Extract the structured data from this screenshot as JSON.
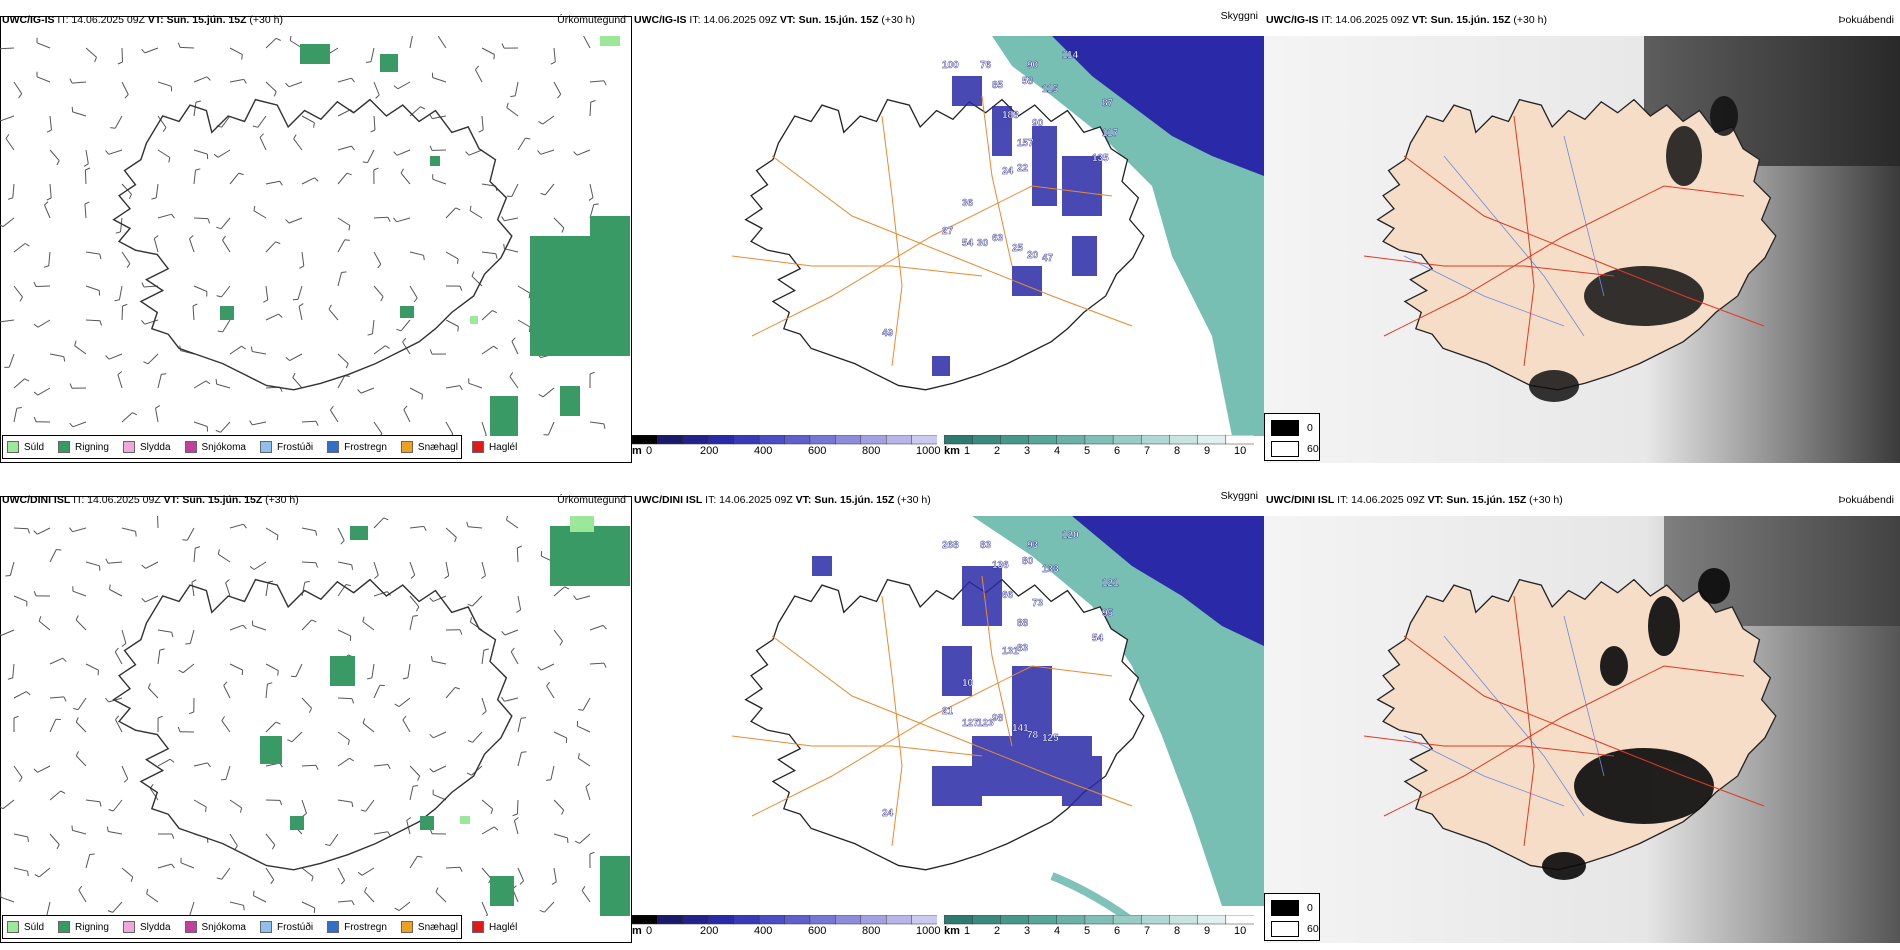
{
  "colors": {
    "drizzle": "#9be89b",
    "rain": "#3a9a66",
    "sleet": "#f0a8d8",
    "snow": "#c040a0",
    "freezing_drizzle": "#8ec0f0",
    "freezing_rain": "#3070c8",
    "snow_pellets": "#f0a020",
    "hail": "#e01818",
    "cloud_navy": "#2a2aa8",
    "visibility_teal": "#4aa89a",
    "land_tint": "#f5ddc8",
    "roads_orange": "#e88a30",
    "roads_red": "#e03a20",
    "rivers": "#6a8ae0"
  },
  "rows": [
    {
      "model_label": "UWC/IG-IS",
      "precip": {
        "header_rest": " IT: 14.06.2025 09Z ",
        "vt_label": "VT: Sun. 15.jún. 15Z",
        "lead": " (+30 h)",
        "field_title": "Úrkomutegund"
      },
      "ceiling": {
        "header_rest": " IT: 14.06.2025 09Z ",
        "vt_label": "VT: Sun. 15.jún. 15Z",
        "lead": " (+30 h)",
        "field_title": "Skyggni",
        "labels": [
          "100",
          "76",
          "90",
          "114",
          "85",
          "58",
          "115",
          "87",
          "117",
          "135",
          "188",
          "90",
          "157",
          "24",
          "22",
          "36",
          "27",
          "54",
          "30",
          "63",
          "25",
          "20",
          "47",
          "49"
        ]
      },
      "fog": {
        "header_rest": " IT: 14.06.2025 09Z ",
        "vt_label": "VT: Sun. 15.jún. 15Z",
        "lead": " (+30 h)",
        "field_title": "Þokuábendi"
      }
    },
    {
      "model_label": "UWC/DINI ISL",
      "precip": {
        "header_rest": " IT: 14.06.2025 09Z ",
        "vt_label": "VT: Sun. 15.jún. 15Z",
        "lead": " (+30 h)",
        "field_title": "Úrkomutegund"
      },
      "ceiling": {
        "header_rest": " IT: 14.06.2025 09Z ",
        "vt_label": "VT: Sun. 15.jún. 15Z",
        "lead": " (+30 h)",
        "field_title": "Skyggni",
        "labels": [
          "268",
          "83",
          "93",
          "120",
          "136",
          "80",
          "133",
          "121",
          "95",
          "54",
          "66",
          "73",
          "88",
          "131",
          "83",
          "10",
          "21",
          "127",
          "123",
          "98",
          "141",
          "78",
          "125",
          "24"
        ]
      },
      "fog": {
        "header_rest": " IT: 14.06.2025 09Z ",
        "vt_label": "VT: Sun. 15.jún. 15Z",
        "lead": " (+30 h)",
        "field_title": "Þokuábendi"
      }
    }
  ],
  "precip_legend": [
    "Súld",
    "Rigning",
    "Slydda",
    "Snjókoma",
    "Frostúði",
    "Frostregn",
    "Snæhagl",
    "Haglél"
  ],
  "ceiling_bar": {
    "unit": "m",
    "ticks": [
      "0",
      "200",
      "400",
      "600",
      "800",
      "1000"
    ]
  },
  "visibility_bar": {
    "unit": "km",
    "ticks": [
      "1",
      "2",
      "3",
      "4",
      "5",
      "6",
      "7",
      "8",
      "9",
      "10"
    ]
  },
  "fog_legend": {
    "high": "0",
    "low": "60"
  }
}
